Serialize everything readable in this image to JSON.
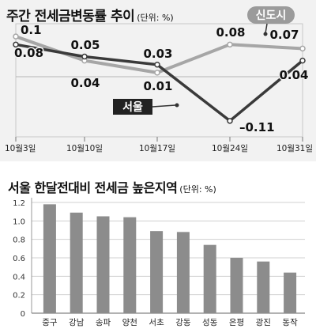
{
  "chart_data": [
    {
      "type": "line",
      "title": "주간 전세금변동률 추이",
      "unit": "(단위: %)",
      "categories": [
        "10월3일",
        "10월10일",
        "10월17일",
        "10월24일",
        "10월31일"
      ],
      "series": [
        {
          "name": "신도시",
          "values": [
            0.1,
            0.04,
            0.01,
            0.08,
            0.07
          ],
          "labels": [
            "0.1",
            "0.04",
            "0.01",
            "0.08",
            "0.07"
          ],
          "color": "#a6a6a6"
        },
        {
          "name": "서울",
          "values": [
            0.08,
            0.05,
            0.03,
            -0.11,
            0.04
          ],
          "labels": [
            "0.08",
            "0.05",
            "0.03",
            "–0.11",
            "0.04"
          ],
          "color": "#3a3a3a"
        }
      ],
      "ylim": [
        -0.13,
        0.12
      ],
      "baseline": 0,
      "grid": false
    },
    {
      "type": "bar",
      "title": "서울 한달전대비 전세금 높은지역",
      "unit": "(단위: %)",
      "categories": [
        "중구",
        "강남",
        "송파",
        "양천",
        "서초",
        "강동",
        "성동",
        "은평",
        "광진",
        "동작"
      ],
      "values": [
        1.18,
        1.09,
        1.05,
        1.04,
        0.89,
        0.88,
        0.74,
        0.6,
        0.56,
        0.44
      ],
      "yticks": [
        "0",
        "0.2",
        "0.4",
        "0.6",
        "0.8",
        "1.0",
        "1.2"
      ],
      "ylim": [
        0,
        1.25
      ],
      "bar_color": "#8c8c8c",
      "grid": true
    }
  ]
}
